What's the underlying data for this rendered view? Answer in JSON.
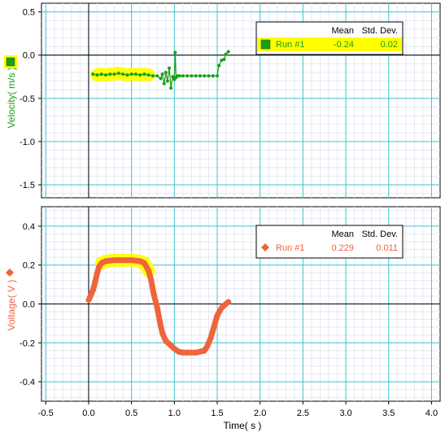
{
  "chart_data": [
    {
      "type": "scatter",
      "ylabel": "Velocity( m/s )",
      "xlim": [
        -0.55,
        4.1
      ],
      "ylim": [
        -1.65,
        0.6
      ],
      "xticks": [
        -0.5,
        0.0,
        0.5,
        1.0,
        1.5,
        2.0,
        2.5,
        3.0,
        3.5,
        4.0
      ],
      "yticks": [
        0.5,
        0.0,
        -0.5,
        -1.0,
        -1.5
      ],
      "ytick_labels": [
        "0.5",
        "0.0",
        "-0.5",
        "-1.0",
        "-1.5"
      ],
      "grid": true,
      "legend": {
        "placement": "top-right",
        "headers": [
          "Mean",
          "Std. Dev."
        ],
        "entries": [
          {
            "name": "Run #1",
            "mean": "-0.24",
            "std": "0.02",
            "highlight": true
          }
        ]
      },
      "color": "#1a9e1a",
      "selection": [
        0.1,
        0.7
      ],
      "series": [
        {
          "name": "Run #1",
          "x": [
            0.05,
            0.1,
            0.15,
            0.2,
            0.25,
            0.3,
            0.35,
            0.4,
            0.45,
            0.5,
            0.55,
            0.6,
            0.65,
            0.7,
            0.75,
            0.8,
            0.84,
            0.86,
            0.88,
            0.9,
            0.92,
            0.94,
            0.96,
            0.98,
            1.0,
            1.01,
            1.02,
            1.04,
            1.06,
            1.1,
            1.15,
            1.2,
            1.25,
            1.3,
            1.35,
            1.4,
            1.45,
            1.5,
            1.52,
            1.55,
            1.58,
            1.6,
            1.63
          ],
          "y": [
            -0.22,
            -0.23,
            -0.22,
            -0.23,
            -0.22,
            -0.22,
            -0.21,
            -0.22,
            -0.23,
            -0.22,
            -0.22,
            -0.23,
            -0.22,
            -0.23,
            -0.24,
            -0.24,
            -0.27,
            -0.22,
            -0.33,
            -0.2,
            -0.3,
            -0.15,
            -0.38,
            -0.25,
            -0.28,
            0.03,
            -0.26,
            -0.24,
            -0.24,
            -0.24,
            -0.24,
            -0.24,
            -0.24,
            -0.24,
            -0.24,
            -0.24,
            -0.24,
            -0.24,
            -0.12,
            -0.06,
            -0.05,
            0.01,
            0.04
          ]
        }
      ]
    },
    {
      "type": "scatter",
      "ylabel": "Voltage( V )",
      "xlabel": "Time( s )",
      "xlim": [
        -0.55,
        4.1
      ],
      "ylim": [
        -0.5,
        0.5
      ],
      "xticks": [
        -0.5,
        0.0,
        0.5,
        1.0,
        1.5,
        2.0,
        2.5,
        3.0,
        3.5,
        4.0
      ],
      "xtick_labels": [
        "-0.5",
        "0.0",
        "0.5",
        "1.0",
        "1.5",
        "2.0",
        "2.5",
        "3.0",
        "3.5",
        "4.0"
      ],
      "yticks": [
        0.4,
        0.2,
        0.0,
        -0.2,
        -0.4
      ],
      "ytick_labels": [
        "0.4",
        "0.2",
        "0.0",
        "-0.2",
        "-0.4"
      ],
      "grid": true,
      "legend": {
        "placement": "top-right",
        "headers": [
          "Mean",
          "Std. Dev."
        ],
        "entries": [
          {
            "name": "Run #1",
            "mean": "0.229",
            "std": "0.011",
            "highlight": false
          }
        ]
      },
      "color": "#f0643c",
      "selection": [
        0.15,
        0.7
      ],
      "series": [
        {
          "name": "Run #1",
          "x": [
            0.0,
            0.02,
            0.05,
            0.08,
            0.1,
            0.12,
            0.15,
            0.2,
            0.3,
            0.4,
            0.5,
            0.6,
            0.65,
            0.7,
            0.73,
            0.76,
            0.8,
            0.83,
            0.86,
            0.9,
            0.95,
            1.0,
            1.05,
            1.1,
            1.15,
            1.2,
            1.25,
            1.3,
            1.35,
            1.38,
            1.42,
            1.46,
            1.5,
            1.55,
            1.6,
            1.63
          ],
          "y": [
            0.02,
            0.04,
            0.07,
            0.12,
            0.16,
            0.19,
            0.21,
            0.22,
            0.225,
            0.225,
            0.225,
            0.22,
            0.21,
            0.17,
            0.12,
            0.05,
            -0.02,
            -0.09,
            -0.15,
            -0.19,
            -0.21,
            -0.23,
            -0.245,
            -0.25,
            -0.25,
            -0.25,
            -0.25,
            -0.245,
            -0.24,
            -0.22,
            -0.18,
            -0.12,
            -0.06,
            -0.02,
            0.0,
            0.01
          ]
        }
      ]
    }
  ]
}
